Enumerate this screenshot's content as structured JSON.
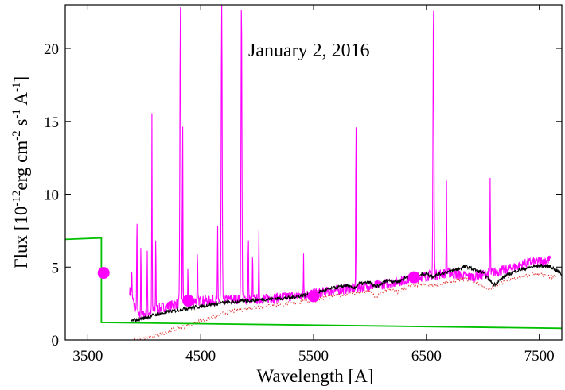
{
  "chart_data": {
    "type": "line",
    "annotation": "January 2, 2016",
    "xlabel": "Wavelength [A]",
    "ylabel_parts": {
      "prefix": "Flux [10",
      "exp1": "-12",
      "mid1": "erg cm",
      "exp2": "-2",
      "mid2": " s",
      "exp3": "-1",
      "mid3": " A",
      "exp4": "-1",
      "suffix": "]"
    },
    "xlim": [
      3300,
      7700
    ],
    "ylim": [
      0,
      23
    ],
    "xticks": [
      3500,
      4500,
      5500,
      6500,
      7500
    ],
    "yticks": [
      0,
      5,
      10,
      15,
      20
    ],
    "grid": false,
    "colors": {
      "model": "#00c000",
      "spectrum": "#ff00ff",
      "fit": "#000000",
      "residual": "#e03030",
      "photometry": "#ff00ff"
    },
    "series": [
      {
        "style": "green-step",
        "points": [
          [
            3300,
            6.9
          ],
          [
            3620,
            7.0
          ],
          [
            3620,
            1.2
          ],
          [
            7700,
            0.8
          ]
        ]
      },
      {
        "style": "magenta-spectrum",
        "continuum": [
          [
            3870,
            3.4
          ],
          [
            3950,
            1.6
          ],
          [
            4100,
            2.1
          ],
          [
            4200,
            2.3
          ],
          [
            4400,
            2.7
          ],
          [
            4600,
            2.7
          ],
          [
            4800,
            2.8
          ],
          [
            5000,
            2.8
          ],
          [
            5200,
            2.9
          ],
          [
            5400,
            3.1
          ],
          [
            5600,
            3.3
          ],
          [
            5800,
            3.5
          ],
          [
            5900,
            3.6
          ],
          [
            6100,
            3.8
          ],
          [
            6300,
            4.1
          ],
          [
            6500,
            4.4
          ],
          [
            6700,
            4.6
          ],
          [
            6900,
            4.3
          ],
          [
            7000,
            4.5
          ],
          [
            7200,
            4.8
          ],
          [
            7400,
            5.3
          ],
          [
            7600,
            5.5
          ]
        ],
        "lines": [
          [
            3889,
            5.0
          ],
          [
            3935,
            9.0
          ],
          [
            3970,
            7.0
          ],
          [
            4026,
            6.0
          ],
          [
            4068,
            15.3
          ],
          [
            4102,
            7.5
          ],
          [
            4320,
            23
          ],
          [
            4340,
            16.0
          ],
          [
            4387,
            5.0
          ],
          [
            4471,
            6.0
          ],
          [
            4650,
            7.5
          ],
          [
            4686,
            23
          ],
          [
            4861,
            23
          ],
          [
            4922,
            7.2
          ],
          [
            4960,
            6.0
          ],
          [
            5016,
            7.2
          ],
          [
            5412,
            6.0
          ],
          [
            5876,
            15.5
          ],
          [
            6563,
            23
          ],
          [
            6678,
            11.1
          ],
          [
            7065,
            11.1
          ]
        ]
      },
      {
        "style": "black-fit",
        "points": [
          [
            3880,
            1.3
          ],
          [
            4000,
            1.5
          ],
          [
            4100,
            1.75
          ],
          [
            4200,
            1.9
          ],
          [
            4300,
            2.05
          ],
          [
            4400,
            2.2
          ],
          [
            4500,
            2.3
          ],
          [
            4600,
            2.45
          ],
          [
            4700,
            2.55
          ],
          [
            4800,
            2.6
          ],
          [
            4900,
            2.7
          ],
          [
            5000,
            2.75
          ],
          [
            5100,
            2.8
          ],
          [
            5200,
            2.85
          ],
          [
            5300,
            2.9
          ],
          [
            5400,
            3.05
          ],
          [
            5500,
            3.2
          ],
          [
            5600,
            3.4
          ],
          [
            5700,
            3.6
          ],
          [
            5800,
            3.75
          ],
          [
            5850,
            3.5
          ],
          [
            5900,
            3.85
          ],
          [
            6000,
            3.95
          ],
          [
            6050,
            3.6
          ],
          [
            6150,
            4.1
          ],
          [
            6250,
            4.0
          ],
          [
            6350,
            4.4
          ],
          [
            6450,
            4.5
          ],
          [
            6500,
            4.55
          ],
          [
            6550,
            4.35
          ],
          [
            6650,
            4.6
          ],
          [
            6750,
            4.8
          ],
          [
            6850,
            5.05
          ],
          [
            6900,
            4.9
          ],
          [
            7000,
            4.6
          ],
          [
            7100,
            3.8
          ],
          [
            7200,
            4.4
          ],
          [
            7300,
            4.75
          ],
          [
            7400,
            4.95
          ],
          [
            7500,
            5.1
          ],
          [
            7600,
            5.05
          ],
          [
            7700,
            4.5
          ]
        ]
      },
      {
        "style": "red-dotted",
        "points": [
          [
            3900,
            0.0
          ],
          [
            4000,
            0.1
          ],
          [
            4100,
            0.3
          ],
          [
            4200,
            0.55
          ],
          [
            4300,
            0.8
          ],
          [
            4400,
            1.05
          ],
          [
            4500,
            1.3
          ],
          [
            4600,
            1.55
          ],
          [
            4700,
            1.8
          ],
          [
            4800,
            2.0
          ],
          [
            4900,
            2.15
          ],
          [
            5000,
            2.25
          ],
          [
            5100,
            2.35
          ],
          [
            5200,
            2.45
          ],
          [
            5300,
            2.5
          ],
          [
            5400,
            2.6
          ],
          [
            5500,
            2.75
          ],
          [
            5600,
            2.9
          ],
          [
            5700,
            3.05
          ],
          [
            5800,
            3.15
          ],
          [
            5900,
            3.25
          ],
          [
            6000,
            3.35
          ],
          [
            6050,
            2.9
          ],
          [
            6150,
            3.5
          ],
          [
            6250,
            3.3
          ],
          [
            6350,
            3.7
          ],
          [
            6450,
            3.8
          ],
          [
            6550,
            3.7
          ],
          [
            6650,
            3.9
          ],
          [
            6750,
            4.05
          ],
          [
            6850,
            4.2
          ],
          [
            6950,
            4.0
          ],
          [
            7050,
            3.4
          ],
          [
            7150,
            3.9
          ],
          [
            7250,
            4.2
          ],
          [
            7350,
            4.35
          ],
          [
            7450,
            4.5
          ],
          [
            7550,
            4.45
          ],
          [
            7650,
            4.3
          ]
        ]
      },
      {
        "style": "photometry",
        "markers": [
          [
            3640,
            4.6
          ],
          [
            4390,
            2.7
          ],
          [
            5500,
            3.0
          ],
          [
            6390,
            4.3
          ]
        ]
      }
    ]
  }
}
